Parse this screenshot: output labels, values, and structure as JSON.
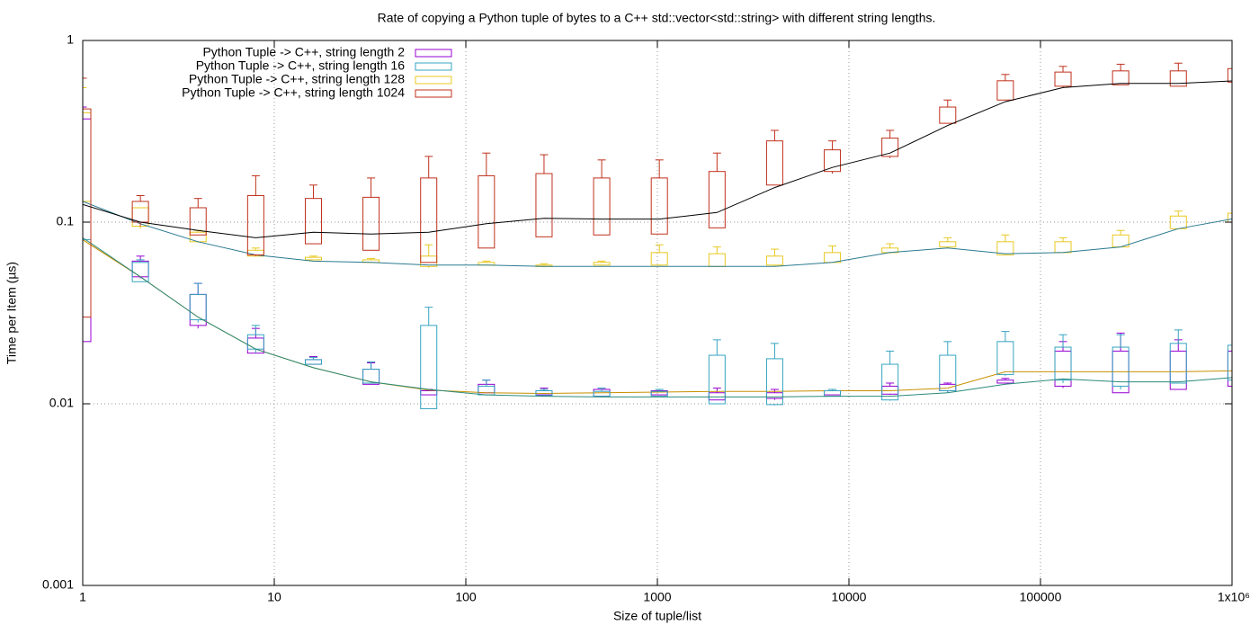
{
  "chart_data": {
    "type": "candlestick",
    "title": "Rate of copying a Python tuple of bytes to a C++ std::vector<std::string> with different string lengths.",
    "x_label": "Size of tuple/list",
    "y_label": "Time per Item (µs)",
    "log_x": true,
    "log_y": true,
    "grid": true,
    "legend_position": "top-left",
    "xlim": [
      1,
      1000000
    ],
    "ylim": [
      0.001,
      1
    ],
    "xticks": [
      1,
      10,
      100,
      1000,
      10000,
      100000,
      {
        "value": 1000000,
        "label": "1x10⁶"
      }
    ],
    "yticks": [
      0.001,
      0.01,
      0.1,
      1
    ],
    "x": [
      1,
      2,
      4,
      8,
      16,
      32,
      64,
      128,
      256,
      512,
      1024,
      2048,
      4096,
      8192,
      16384,
      32768,
      65536,
      131072,
      262144,
      524288,
      1048576
    ],
    "series": [
      {
        "name": "Python Tuple -> C++, string length 2",
        "color": "#9400d3",
        "trend_color": "#c89000",
        "box_min": [
          0.022,
          0.05,
          0.027,
          0.019,
          0.0165,
          0.0128,
          0.0112,
          0.0115,
          0.0112,
          0.011,
          0.0112,
          0.0105,
          0.0107,
          0.0112,
          0.0113,
          0.0118,
          0.013,
          0.0125,
          0.0115,
          0.012,
          0.0125
        ],
        "box_max": [
          0.37,
          0.061,
          0.04,
          0.023,
          0.0175,
          0.0155,
          0.0118,
          0.0128,
          0.0118,
          0.012,
          0.0118,
          0.0115,
          0.0115,
          0.0118,
          0.0125,
          0.0128,
          0.0135,
          0.0195,
          0.0195,
          0.0195,
          0.0195
        ],
        "whisker_min": [
          0.022,
          0.049,
          0.026,
          0.019,
          0.0165,
          0.0128,
          0.0112,
          0.0115,
          0.0112,
          0.011,
          0.0112,
          0.0105,
          0.0105,
          0.0112,
          0.0112,
          0.0115,
          0.013,
          0.0122,
          0.0115,
          0.012,
          0.0125
        ],
        "whisker_max": [
          0.43,
          0.065,
          0.046,
          0.026,
          0.0182,
          0.0168,
          0.012,
          0.0135,
          0.0122,
          0.0122,
          0.012,
          0.0122,
          0.012,
          0.012,
          0.013,
          0.013,
          0.0138,
          0.022,
          0.0245,
          0.0225,
          0.022
        ],
        "trend": [
          0.08,
          0.05,
          0.03,
          0.02,
          0.0158,
          0.0132,
          0.0119,
          0.0115,
          0.0114,
          0.0115,
          0.0116,
          0.0117,
          0.0117,
          0.0118,
          0.0118,
          0.0122,
          0.015,
          0.015,
          0.015,
          0.015,
          0.0152
        ]
      },
      {
        "name": "Python Tuple -> C++, string length 16",
        "color": "#35a4c0",
        "trend_color": "#2a8a7a",
        "box_min": [
          0.08,
          0.047,
          0.029,
          0.02,
          0.0165,
          0.013,
          0.0094,
          0.0112,
          0.0111,
          0.011,
          0.011,
          0.01,
          0.0099,
          0.011,
          0.0105,
          0.0118,
          0.0145,
          0.0135,
          0.0125,
          0.013,
          0.0135
        ],
        "box_max": [
          0.13,
          0.06,
          0.04,
          0.024,
          0.0175,
          0.0155,
          0.027,
          0.0125,
          0.0118,
          0.0117,
          0.0117,
          0.0185,
          0.0177,
          0.0118,
          0.0165,
          0.0185,
          0.022,
          0.0205,
          0.0205,
          0.0215,
          0.021
        ],
        "whisker_min": [
          0.08,
          0.047,
          0.028,
          0.019,
          0.0165,
          0.013,
          0.0094,
          0.0111,
          0.011,
          0.011,
          0.011,
          0.01,
          0.0098,
          0.011,
          0.0104,
          0.0115,
          0.0142,
          0.013,
          0.012,
          0.013,
          0.0135
        ],
        "whisker_max": [
          0.13,
          0.062,
          0.046,
          0.027,
          0.018,
          0.017,
          0.034,
          0.0135,
          0.012,
          0.0122,
          0.012,
          0.0225,
          0.0215,
          0.012,
          0.0195,
          0.022,
          0.025,
          0.024,
          0.024,
          0.0255,
          0.023
        ],
        "trend": [
          0.082,
          0.05,
          0.03,
          0.02,
          0.0158,
          0.0132,
          0.012,
          0.0112,
          0.011,
          0.0109,
          0.0109,
          0.0109,
          0.0109,
          0.011,
          0.011,
          0.0115,
          0.0128,
          0.0137,
          0.0132,
          0.0132,
          0.014
        ]
      },
      {
        "name": "Python Tuple -> C++, string length 128",
        "color": "#e8c820",
        "trend_color": "#2a7a90",
        "box_min": [
          0.13,
          0.095,
          0.078,
          0.065,
          0.062,
          0.06,
          0.057,
          0.058,
          0.057,
          0.058,
          0.058,
          0.057,
          0.058,
          0.06,
          0.068,
          0.073,
          0.066,
          0.068,
          0.073,
          0.092,
          0.1
        ],
        "box_max": [
          0.4,
          0.12,
          0.088,
          0.07,
          0.064,
          0.062,
          0.065,
          0.06,
          0.058,
          0.06,
          0.068,
          0.067,
          0.065,
          0.068,
          0.072,
          0.078,
          0.078,
          0.078,
          0.085,
          0.108,
          0.112
        ],
        "whisker_min": [
          0.12,
          0.092,
          0.077,
          0.065,
          0.062,
          0.06,
          0.056,
          0.058,
          0.057,
          0.057,
          0.057,
          0.057,
          0.057,
          0.06,
          0.067,
          0.072,
          0.066,
          0.068,
          0.073,
          0.092,
          0.1
        ],
        "whisker_max": [
          0.55,
          0.12,
          0.09,
          0.072,
          0.065,
          0.063,
          0.075,
          0.061,
          0.059,
          0.061,
          0.075,
          0.073,
          0.071,
          0.074,
          0.076,
          0.082,
          0.085,
          0.082,
          0.09,
          0.115,
          0.12
        ],
        "trend": [
          0.13,
          0.098,
          0.078,
          0.066,
          0.061,
          0.06,
          0.058,
          0.058,
          0.057,
          0.057,
          0.057,
          0.057,
          0.057,
          0.06,
          0.068,
          0.072,
          0.067,
          0.068,
          0.073,
          0.092,
          0.105
        ]
      },
      {
        "name": "Python Tuple -> C++, string length 1024",
        "color": "#c0301c",
        "trend_color": "#000000",
        "box_min": [
          0.03,
          0.1,
          0.085,
          0.066,
          0.076,
          0.07,
          0.06,
          0.072,
          0.083,
          0.085,
          0.086,
          0.093,
          0.16,
          0.19,
          0.23,
          0.35,
          0.47,
          0.56,
          0.57,
          0.56,
          0.59
        ],
        "box_max": [
          0.42,
          0.13,
          0.12,
          0.14,
          0.135,
          0.137,
          0.175,
          0.18,
          0.185,
          0.175,
          0.175,
          0.19,
          0.28,
          0.25,
          0.29,
          0.43,
          0.6,
          0.67,
          0.68,
          0.68,
          0.7
        ],
        "whisker_min": [
          0.028,
          0.095,
          0.085,
          0.065,
          0.076,
          0.07,
          0.06,
          0.072,
          0.083,
          0.085,
          0.086,
          0.093,
          0.16,
          0.185,
          0.225,
          0.35,
          0.47,
          0.55,
          0.57,
          0.56,
          0.58
        ],
        "whisker_max": [
          0.62,
          0.14,
          0.135,
          0.18,
          0.16,
          0.175,
          0.23,
          0.24,
          0.235,
          0.22,
          0.22,
          0.24,
          0.32,
          0.28,
          0.32,
          0.47,
          0.65,
          0.72,
          0.74,
          0.75,
          0.78
        ],
        "trend": [
          0.125,
          0.1,
          0.09,
          0.082,
          0.088,
          0.086,
          0.088,
          0.098,
          0.105,
          0.104,
          0.104,
          0.113,
          0.155,
          0.2,
          0.24,
          0.34,
          0.46,
          0.55,
          0.58,
          0.58,
          0.6
        ]
      }
    ]
  }
}
